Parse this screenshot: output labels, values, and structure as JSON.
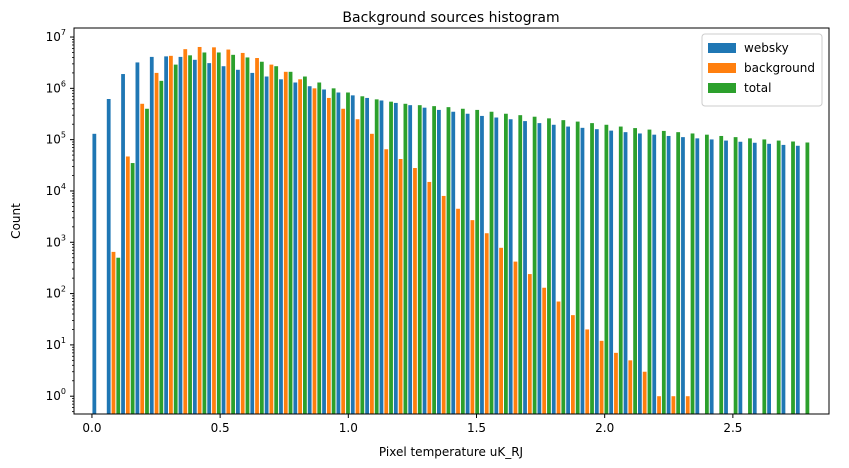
{
  "chart_data": {
    "type": "bar",
    "title": "Background sources histogram",
    "xlabel": "Pixel temperature uK_RJ",
    "ylabel": "Count",
    "yscale": "log",
    "ylim": [
      0.45,
      15000000
    ],
    "xlim": [
      -0.07,
      2.875
    ],
    "x_ticks": [
      0.0,
      0.5,
      1.0,
      1.5,
      2.0,
      2.5
    ],
    "x_tick_labels": [
      "0.0",
      "0.5",
      "1.0",
      "1.5",
      "2.0",
      "2.5"
    ],
    "y_ticks": [
      1,
      10,
      100,
      1000,
      10000,
      100000,
      1000000,
      10000000
    ],
    "y_tick_labels": [
      [
        "10",
        "0"
      ],
      [
        "10",
        "1"
      ],
      [
        "10",
        "2"
      ],
      [
        "10",
        "3"
      ],
      [
        "10",
        "4"
      ],
      [
        "10",
        "5"
      ],
      [
        "10",
        "6"
      ],
      [
        "10",
        "7"
      ]
    ],
    "legend_position": "top-right",
    "grid": false,
    "bin_edges_start": 0.0,
    "bin_width": 0.056,
    "series": [
      {
        "name": "websky",
        "color": "#1f77b4",
        "values": [
          130000,
          620000,
          1900000,
          3200000,
          4100000,
          4200000,
          4100000,
          3600000,
          3100000,
          2700000,
          2300000,
          2000000,
          1700000,
          1500000,
          1300000,
          1100000,
          950000,
          830000,
          730000,
          650000,
          580000,
          520000,
          470000,
          420000,
          380000,
          350000,
          320000,
          290000,
          270000,
          250000,
          230000,
          210000,
          195000,
          180000,
          170000,
          160000,
          150000,
          140000,
          132000,
          125000,
          118000,
          112000,
          106000,
          101000,
          96000,
          91000,
          87000,
          83000,
          79000,
          76000
        ]
      },
      {
        "name": "background",
        "color": "#ff7f0e",
        "values": [
          null,
          650,
          47000,
          500000,
          2000000,
          4300000,
          5800000,
          6400000,
          6300000,
          5700000,
          4900000,
          3900000,
          2900000,
          2100000,
          1500000,
          1000000,
          650000,
          400000,
          250000,
          130000,
          65000,
          42000,
          28000,
          15000,
          8000,
          4500,
          2700,
          1500,
          780,
          420,
          240,
          130,
          70,
          38,
          20,
          12,
          7,
          5,
          3,
          1,
          1,
          1
        ]
      },
      {
        "name": "total",
        "color": "#2ca02c",
        "values": [
          null,
          500,
          35000,
          400000,
          1400000,
          2900000,
          4400000,
          5000000,
          5000000,
          4500000,
          4000000,
          3300000,
          2700000,
          2100000,
          1700000,
          1300000,
          1000000,
          830000,
          700000,
          610000,
          550000,
          500000,
          470000,
          450000,
          430000,
          400000,
          380000,
          350000,
          320000,
          300000,
          280000,
          260000,
          240000,
          225000,
          210000,
          195000,
          180000,
          168000,
          157000,
          148000,
          140000,
          132000,
          125000,
          118000,
          112000,
          106000,
          101000,
          96000,
          92000,
          88000
        ]
      }
    ]
  }
}
